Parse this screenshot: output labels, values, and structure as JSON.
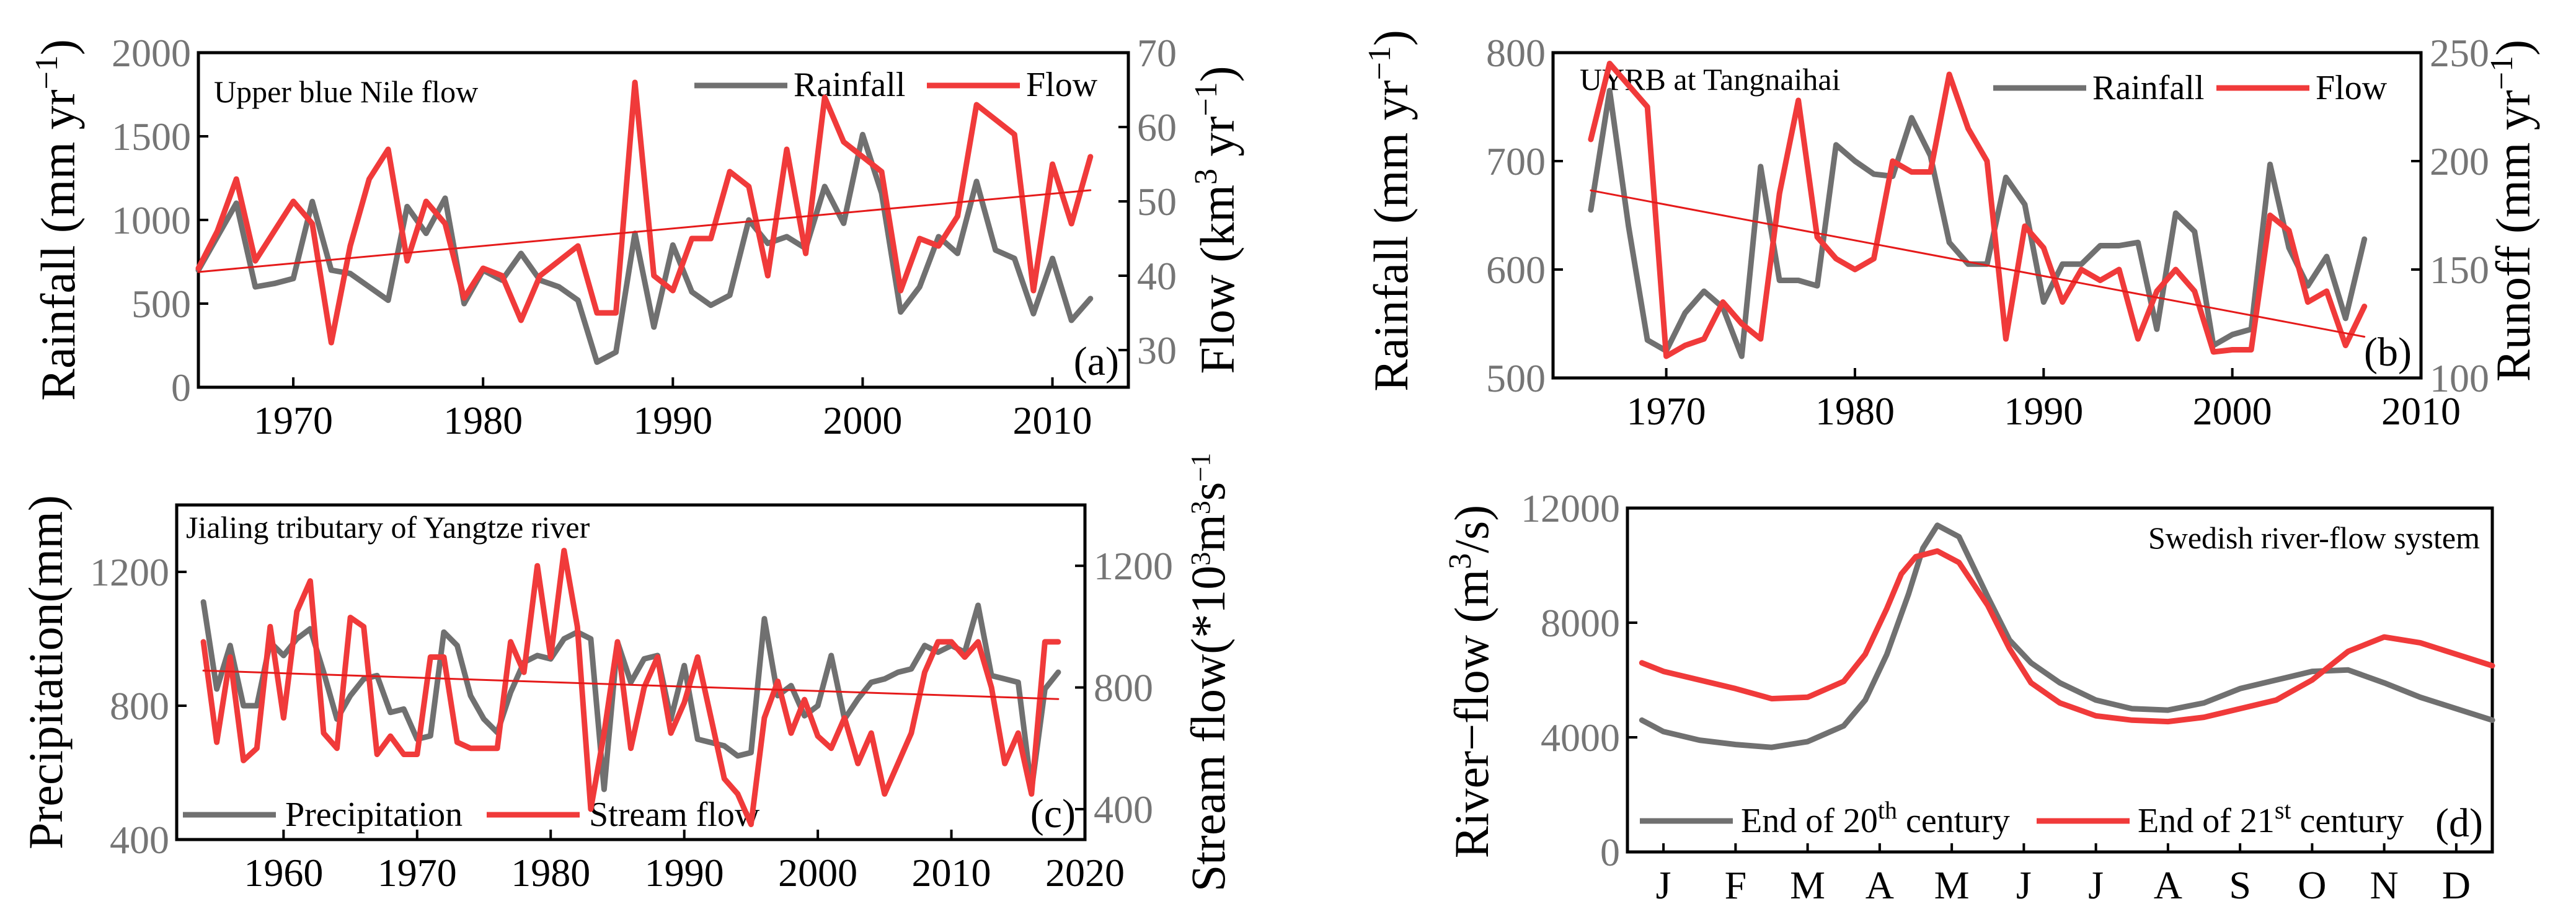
{
  "colors": {
    "rainfall": "#707070",
    "flow": "#f03a3a",
    "trend": "#e51a1a",
    "axis": "#000000",
    "right_axis_text": "#757575"
  },
  "chart_data": [
    {
      "panel": "(a)",
      "type": "line",
      "title": "Upper blue Nile flow",
      "xlabel": "",
      "ylabel_left": "Rainfall (mm yr",
      "ylabel_left_sup": "−1",
      "ylabel_left_end": ")",
      "ylabel_right": "Flow (km",
      "ylabel_right_sup1": "3",
      "ylabel_right_mid": " yr",
      "ylabel_right_sup2": "−1",
      "ylabel_right_end": ")",
      "xlim": [
        1965,
        2014
      ],
      "ylim_left": [
        0,
        2000
      ],
      "ylim_right": [
        25,
        70
      ],
      "xticks": [
        "1970",
        "1980",
        "1990",
        "2000",
        "2010"
      ],
      "yticks_left": [
        "0",
        "500",
        "1000",
        "1500",
        "2000"
      ],
      "yticks_right": [
        "30",
        "40",
        "50",
        "60",
        "70"
      ],
      "legend": [
        "Rainfall",
        "Flow"
      ],
      "series": [
        {
          "name": "Rainfall",
          "axis": "left",
          "x": [
            1965,
            1966,
            1967,
            1968,
            1969,
            1970,
            1971,
            1972,
            1973,
            1974,
            1975,
            1976,
            1977,
            1978,
            1979,
            1980,
            1981,
            1982,
            1983,
            1984,
            1985,
            1986,
            1987,
            1988,
            1989,
            1990,
            1991,
            1992,
            1993,
            1994,
            1995,
            1996,
            1997,
            1998,
            1999,
            2000,
            2001,
            2002,
            2003,
            2004,
            2005,
            2006,
            2007,
            2008,
            2009,
            2010,
            2011,
            2012
          ],
          "values": [
            700,
            900,
            1100,
            600,
            620,
            650,
            1110,
            700,
            680,
            600,
            520,
            1080,
            920,
            1130,
            500,
            700,
            640,
            800,
            640,
            600,
            520,
            150,
            210,
            920,
            360,
            850,
            570,
            490,
            550,
            1000,
            860,
            900,
            830,
            1200,
            980,
            1510,
            1160,
            450,
            600,
            900,
            800,
            1230,
            820,
            770,
            440,
            770,
            400,
            530
          ]
        },
        {
          "name": "Flow",
          "axis": "right",
          "x": [
            1965,
            1966,
            1967,
            1968,
            1969,
            1970,
            1971,
            1972,
            1973,
            1974,
            1975,
            1976,
            1977,
            1978,
            1979,
            1980,
            1981,
            1982,
            1983,
            1984,
            1985,
            1986,
            1987,
            1988,
            1989,
            1990,
            1991,
            1992,
            1993,
            1994,
            1995,
            1996,
            1997,
            1998,
            1999,
            2000,
            2001,
            2002,
            2003,
            2004,
            2005,
            2006,
            2007,
            2008,
            2009,
            2010,
            2011,
            2012
          ],
          "values": [
            41,
            46,
            53,
            42,
            46,
            50,
            47,
            31,
            44,
            53,
            57,
            42,
            50,
            47,
            37,
            41,
            40,
            34,
            40,
            42,
            44,
            35,
            35,
            66,
            40,
            38,
            45,
            45,
            54,
            52,
            40,
            57,
            43,
            64,
            58,
            56,
            54,
            38,
            45,
            44,
            48,
            63,
            61,
            59,
            38,
            55,
            47,
            56
          ]
        },
        {
          "name": "Trend",
          "axis": "right",
          "x": [
            1965,
            2012
          ],
          "values": [
            40.5,
            51.5
          ]
        }
      ]
    },
    {
      "panel": "(b)",
      "type": "line",
      "title": "UYRB at Tangnaihai",
      "xlabel": "",
      "ylabel_left": "Rainfall (mm yr",
      "ylabel_left_sup": "−1",
      "ylabel_left_end": ")",
      "ylabel_right": "Runoff (mm yr",
      "ylabel_right_sup": "−1",
      "ylabel_right_end": ")",
      "xlim": [
        1964,
        2010
      ],
      "ylim_left": [
        500,
        800
      ],
      "ylim_right": [
        100,
        250
      ],
      "xticks": [
        "1970",
        "1980",
        "1990",
        "2000",
        "2010"
      ],
      "yticks_left": [
        "500",
        "600",
        "700",
        "800"
      ],
      "yticks_right": [
        "100",
        "150",
        "200",
        "250"
      ],
      "legend": [
        "Rainfall",
        "Flow"
      ],
      "series": [
        {
          "name": "Rainfall",
          "axis": "left",
          "x": [
            1966,
            1967,
            1968,
            1969,
            1970,
            1971,
            1972,
            1973,
            1974,
            1975,
            1976,
            1977,
            1978,
            1979,
            1980,
            1981,
            1982,
            1983,
            1984,
            1985,
            1986,
            1987,
            1988,
            1989,
            1990,
            1991,
            1992,
            1993,
            1994,
            1995,
            1996,
            1997,
            1998,
            1999,
            2000,
            2001,
            2002,
            2003,
            2004,
            2005,
            2006,
            2007
          ],
          "values": [
            655,
            765,
            640,
            535,
            525,
            560,
            580,
            565,
            520,
            695,
            590,
            590,
            585,
            715,
            700,
            688,
            686,
            740,
            705,
            625,
            605,
            605,
            685,
            660,
            570,
            605,
            605,
            622,
            622,
            625,
            545,
            652,
            635,
            530,
            540,
            545,
            697,
            620,
            585,
            612,
            555,
            628
          ]
        },
        {
          "name": "Flow",
          "axis": "right",
          "x": [
            1966,
            1967,
            1968,
            1969,
            1970,
            1971,
            1972,
            1973,
            1974,
            1975,
            1976,
            1977,
            1978,
            1979,
            1980,
            1981,
            1982,
            1983,
            1984,
            1985,
            1986,
            1987,
            1988,
            1989,
            1990,
            1991,
            1992,
            1993,
            1994,
            1995,
            1996,
            1997,
            1998,
            1999,
            2000,
            2001,
            2002,
            2003,
            2004,
            2005,
            2006,
            2007
          ],
          "values": [
            210,
            245,
            235,
            225,
            110,
            115,
            118,
            135,
            125,
            118,
            185,
            228,
            165,
            155,
            150,
            155,
            200,
            195,
            195,
            240,
            215,
            200,
            118,
            170,
            160,
            135,
            150,
            145,
            150,
            118,
            140,
            150,
            140,
            112,
            113,
            113,
            175,
            168,
            135,
            140,
            115,
            133
          ]
        },
        {
          "name": "Trend",
          "axis": "left",
          "x": [
            1966,
            2007
          ],
          "values": [
            673,
            538
          ]
        }
      ]
    },
    {
      "panel": "(c)",
      "type": "line",
      "title": "Jialing tributary of Yangtze river",
      "xlabel": "",
      "ylabel_left": "Precipitation(mm)",
      "ylabel_right": "Stream flow(*10",
      "ylabel_right_sup1": "3",
      "ylabel_right_mid": "m",
      "ylabel_right_sup2": "3",
      "ylabel_right_mid2": "s",
      "ylabel_right_sup3": "−1",
      "xlim": [
        1952,
        2020
      ],
      "ylim_left": [
        400,
        1400
      ],
      "ylim_right": [
        300,
        1400
      ],
      "xticks": [
        "1960",
        "1970",
        "1980",
        "1990",
        "2000",
        "2010",
        "2020"
      ],
      "yticks_left": [
        "400",
        "800",
        "1200"
      ],
      "yticks_right": [
        "400",
        "800",
        "1200"
      ],
      "legend": [
        "Precipitation",
        "Stream flow"
      ],
      "series": [
        {
          "name": "Precipitation",
          "axis": "left",
          "x": [
            1954,
            1955,
            1956,
            1957,
            1958,
            1959,
            1960,
            1961,
            1962,
            1963,
            1964,
            1965,
            1966,
            1967,
            1968,
            1969,
            1970,
            1971,
            1972,
            1973,
            1974,
            1975,
            1976,
            1977,
            1978,
            1979,
            1980,
            1981,
            1982,
            1983,
            1984,
            1985,
            1986,
            1987,
            1988,
            1989,
            1990,
            1991,
            1992,
            1993,
            1994,
            1995,
            1996,
            1997,
            1998,
            1999,
            2000,
            2001,
            2002,
            2003,
            2004,
            2005,
            2006,
            2007,
            2008,
            2009,
            2010,
            2011,
            2012,
            2013,
            2014,
            2015,
            2016,
            2017,
            2018
          ],
          "values": [
            1110,
            850,
            980,
            800,
            800,
            990,
            950,
            1000,
            1030,
            900,
            760,
            830,
            880,
            890,
            780,
            790,
            700,
            710,
            1020,
            980,
            830,
            760,
            720,
            840,
            930,
            950,
            940,
            1000,
            1020,
            1000,
            550,
            990,
            870,
            940,
            950,
            760,
            920,
            700,
            690,
            680,
            650,
            660,
            1060,
            830,
            860,
            770,
            800,
            950,
            760,
            820,
            870,
            880,
            900,
            910,
            980,
            960,
            980,
            960,
            1100,
            890,
            880,
            870,
            550,
            850,
            900
          ]
        },
        {
          "name": "Stream flow",
          "axis": "right",
          "x": [
            1954,
            1955,
            1956,
            1957,
            1958,
            1959,
            1960,
            1961,
            1962,
            1963,
            1964,
            1965,
            1966,
            1967,
            1968,
            1969,
            1970,
            1971,
            1972,
            1973,
            1974,
            1975,
            1976,
            1977,
            1978,
            1979,
            1980,
            1981,
            1982,
            1983,
            1984,
            1985,
            1986,
            1987,
            1988,
            1989,
            1990,
            1991,
            1992,
            1993,
            1994,
            1995,
            1996,
            1997,
            1998,
            1999,
            2000,
            2001,
            2002,
            2003,
            2004,
            2005,
            2006,
            2007,
            2008,
            2009,
            2010,
            2011,
            2012,
            2013,
            2014,
            2015,
            2016,
            2017,
            2018
          ],
          "values": [
            950,
            620,
            900,
            560,
            600,
            1000,
            700,
            1050,
            1150,
            650,
            600,
            1030,
            1000,
            580,
            640,
            580,
            580,
            900,
            900,
            620,
            600,
            600,
            600,
            950,
            850,
            1200,
            900,
            1250,
            1000,
            400,
            650,
            950,
            600,
            800,
            900,
            650,
            750,
            900,
            700,
            500,
            450,
            350,
            700,
            820,
            650,
            760,
            640,
            600,
            700,
            550,
            650,
            450,
            550,
            650,
            850,
            950,
            950,
            900,
            950,
            800,
            550,
            650,
            450,
            950,
            950
          ]
        },
        {
          "name": "Trend",
          "axis": "left",
          "x": [
            1954,
            2018
          ],
          "values": [
            905,
            820
          ]
        }
      ]
    },
    {
      "panel": "(d)",
      "type": "line",
      "title": "Swedish river-flow system",
      "xlabel": "",
      "ylabel_left": "River−flow (m",
      "ylabel_left_sup": "3",
      "ylabel_left_end": "/s)",
      "xlim": [
        0,
        12
      ],
      "ylim_left": [
        0,
        12000
      ],
      "xticks": [
        "J",
        "F",
        "M",
        "A",
        "M",
        "J",
        "J",
        "A",
        "S",
        "O",
        "N",
        "D"
      ],
      "yticks_left": [
        "0",
        "4000",
        "8000",
        "12000"
      ],
      "legend": [
        "End of 20",
        "End of 21"
      ],
      "legend_sup": [
        "th",
        "st"
      ],
      "legend_suffix": " century",
      "series": [
        {
          "name": "End of 20th century",
          "x": [
            0.2,
            0.5,
            1.0,
            1.5,
            2.0,
            2.5,
            3.0,
            3.3,
            3.6,
            3.9,
            4.1,
            4.3,
            4.6,
            5.0,
            5.3,
            5.6,
            6.0,
            6.5,
            7.0,
            7.5,
            8.0,
            8.5,
            9.0,
            9.5,
            10.0,
            10.5,
            11.0,
            11.5,
            12.0
          ],
          "values": [
            4600,
            4200,
            3900,
            3750,
            3650,
            3850,
            4400,
            5300,
            6900,
            9000,
            10600,
            11400,
            11000,
            8900,
            7400,
            6600,
            5900,
            5300,
            5000,
            4950,
            5200,
            5700,
            6000,
            6300,
            6350,
            5900,
            5400,
            5000,
            4600
          ]
        },
        {
          "name": "End of 21st century",
          "x": [
            0.2,
            0.5,
            1.0,
            1.5,
            2.0,
            2.5,
            3.0,
            3.3,
            3.6,
            3.8,
            4.0,
            4.3,
            4.6,
            5.0,
            5.3,
            5.6,
            6.0,
            6.5,
            7.0,
            7.5,
            8.0,
            8.5,
            9.0,
            9.5,
            10.0,
            10.5,
            11.0,
            11.5,
            12.0
          ],
          "values": [
            6600,
            6300,
            6000,
            5700,
            5350,
            5400,
            5950,
            6900,
            8500,
            9700,
            10300,
            10500,
            10100,
            8600,
            7100,
            5900,
            5200,
            4750,
            4600,
            4550,
            4700,
            5000,
            5300,
            6000,
            7000,
            7500,
            7300,
            6900,
            6500
          ]
        }
      ]
    }
  ]
}
